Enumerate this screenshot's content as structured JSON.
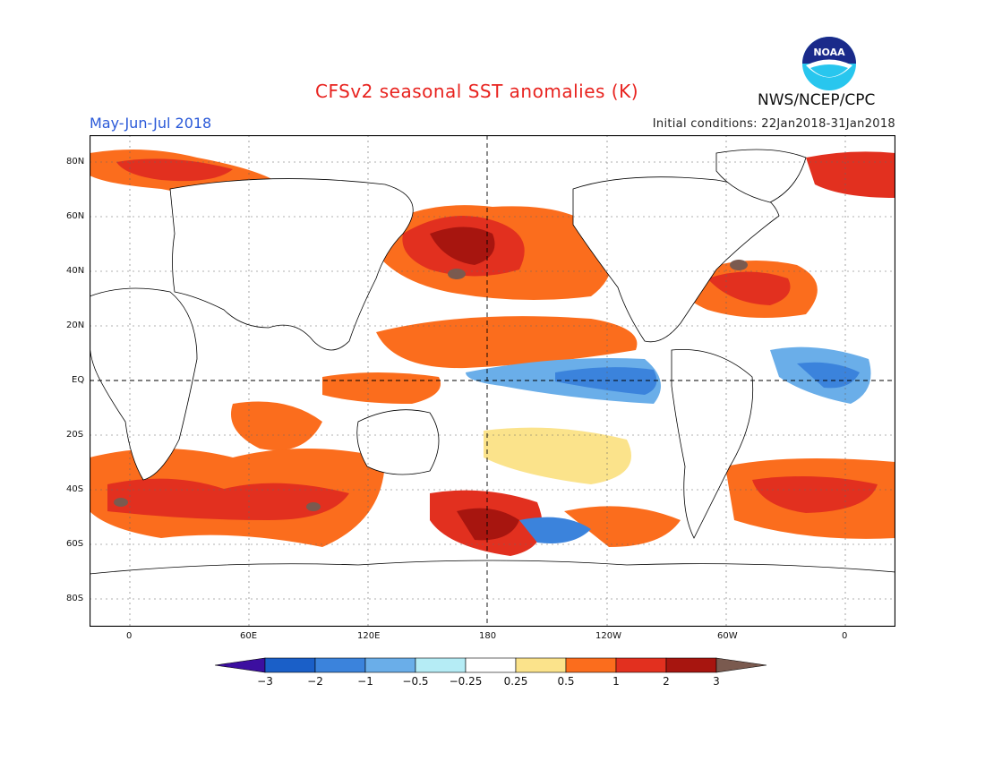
{
  "header": {
    "title": "CFSv2 seasonal SST anomalies (K)",
    "season": "May-Jun-Jul 2018",
    "initial_conditions": "Initial conditions: 22Jan2018-31Jan2018",
    "agency": "NWS/NCEP/CPC",
    "logo_text": "NOAA"
  },
  "map": {
    "lat_labels": [
      "80N",
      "60N",
      "40N",
      "20N",
      "EQ",
      "20S",
      "40S",
      "60S",
      "80S"
    ],
    "lon_labels": [
      "0",
      "60E",
      "120E",
      "180",
      "120W",
      "60W",
      "0"
    ]
  },
  "colorbar": {
    "labels": [
      "−3",
      "−2",
      "−1",
      "−0.5",
      "−0.25",
      "0.25",
      "0.5",
      "1",
      "2",
      "3"
    ],
    "colors": [
      "#3c0fa0",
      "#1a5fc8",
      "#3b83dc",
      "#6aaee9",
      "#b5ecf5",
      "#ffffff",
      "#fbe38b",
      "#fb6d1d",
      "#e2301f",
      "#a7150f",
      "#7a5a4f"
    ]
  }
}
